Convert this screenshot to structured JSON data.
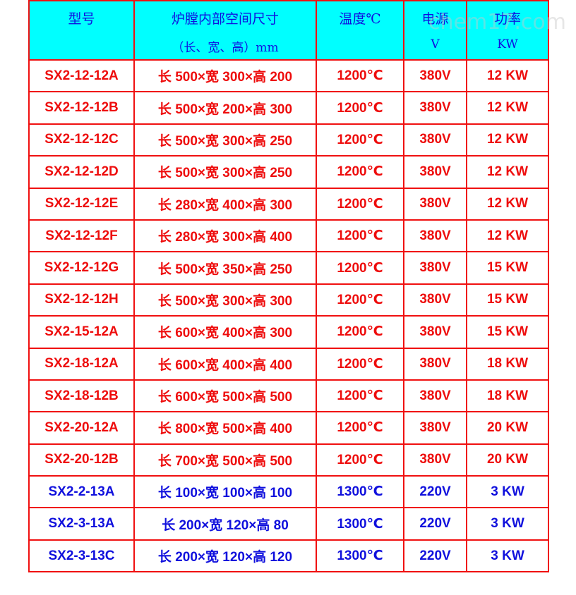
{
  "watermark": "chem17.com",
  "header": {
    "model": "型号",
    "size_line1": "炉膛内部空间尺寸",
    "size_line2": "（长、宽、高）mm",
    "temp": "温度℃",
    "power_line1": "电源",
    "power_line2": "V",
    "kw_line1": "功率",
    "kw_line2": "KW"
  },
  "colors": {
    "red_rows": "#ee0c0c",
    "blue_rows": "#1010dd",
    "header_bg": "#00ffff"
  },
  "rows": [
    {
      "model": "SX2-12-12A",
      "size": "长 500×宽 300×高 200",
      "temp": "1200℃",
      "voltage": "380V",
      "power": "12 KW",
      "color": "red"
    },
    {
      "model": "SX2-12-12B",
      "size": "长 500×宽 200×高 300",
      "temp": "1200℃",
      "voltage": "380V",
      "power": "12 KW",
      "color": "red"
    },
    {
      "model": "SX2-12-12C",
      "size": "长 500×宽 300×高 250",
      "temp": "1200℃",
      "voltage": "380V",
      "power": "12 KW",
      "color": "red"
    },
    {
      "model": "SX2-12-12D",
      "size": "长 500×宽 300×高 250",
      "temp": "1200℃",
      "voltage": "380V",
      "power": "12 KW",
      "color": "red"
    },
    {
      "model": "SX2-12-12E",
      "size": "长 280×宽 400×高 300",
      "temp": "1200℃",
      "voltage": "380V",
      "power": "12 KW",
      "color": "red"
    },
    {
      "model": "SX2-12-12F",
      "size": "长 280×宽 300×高 400",
      "temp": "1200℃",
      "voltage": "380V",
      "power": "12 KW",
      "color": "red"
    },
    {
      "model": "SX2-12-12G",
      "size": "长 500×宽 350×高 250",
      "temp": "1200℃",
      "voltage": "380V",
      "power": "15 KW",
      "color": "red"
    },
    {
      "model": "SX2-12-12H",
      "size": "长 500×宽 300×高 300",
      "temp": "1200℃",
      "voltage": "380V",
      "power": "15 KW",
      "color": "red"
    },
    {
      "model": "SX2-15-12A",
      "size": "长 600×宽 400×高 300",
      "temp": "1200℃",
      "voltage": "380V",
      "power": "15 KW",
      "color": "red"
    },
    {
      "model": "SX2-18-12A",
      "size": "长 600×宽 400×高 400",
      "temp": "1200℃",
      "voltage": "380V",
      "power": "18 KW",
      "color": "red"
    },
    {
      "model": "SX2-18-12B",
      "size": "长 600×宽 500×高 500",
      "temp": "1200℃",
      "voltage": "380V",
      "power": "18 KW",
      "color": "red"
    },
    {
      "model": "SX2-20-12A",
      "size": "长 800×宽 500×高 400",
      "temp": "1200℃",
      "voltage": "380V",
      "power": "20 KW",
      "color": "red"
    },
    {
      "model": "SX2-20-12B",
      "size": "长 700×宽 500×高 500",
      "temp": "1200℃",
      "voltage": "380V",
      "power": "20 KW",
      "color": "red"
    },
    {
      "model": "SX2-2-13A",
      "size": "长 100×宽 100×高 100",
      "temp": "1300℃",
      "voltage": "220V",
      "power": "3 KW",
      "color": "blue"
    },
    {
      "model": "SX2-3-13A",
      "size": "长 200×宽 120×高 80",
      "temp": "1300℃",
      "voltage": "220V",
      "power": "3 KW",
      "color": "blue"
    },
    {
      "model": "SX2-3-13C",
      "size": "长 200×宽 120×高 120",
      "temp": "1300℃",
      "voltage": "220V",
      "power": "3 KW",
      "color": "blue"
    }
  ]
}
